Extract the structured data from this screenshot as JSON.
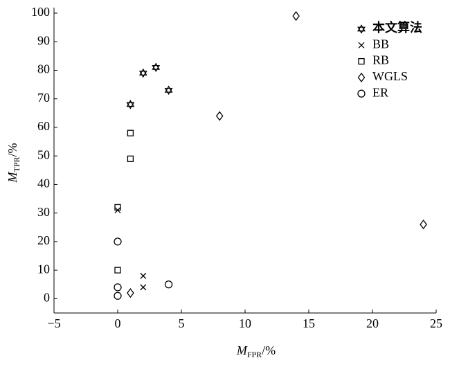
{
  "chart_data": {
    "type": "scatter",
    "xlabel": {
      "main": "M",
      "sub": "FPR",
      "unit": "/%"
    },
    "ylabel": {
      "main": "M",
      "sub": "TPR",
      "unit": "/%"
    },
    "xlim": [
      -5,
      25
    ],
    "ylim": [
      -5,
      100
    ],
    "xticks": [
      {
        "value": -5,
        "label": "−5"
      },
      0,
      5,
      10,
      15,
      20,
      25
    ],
    "yticks": [
      0,
      10,
      20,
      30,
      40,
      50,
      60,
      70,
      80,
      90,
      100
    ],
    "legend": "top-right",
    "series": [
      {
        "name": "本文算法",
        "marker": "hexagram",
        "color": "#000000",
        "x": [
          1,
          2,
          3,
          4
        ],
        "y": [
          68,
          79,
          81,
          73
        ]
      },
      {
        "name": "BB",
        "marker": "x",
        "color": "#000000",
        "x": [
          0,
          2,
          2
        ],
        "y": [
          31,
          8,
          4
        ]
      },
      {
        "name": "RB",
        "marker": "square",
        "color": "#000000",
        "x": [
          0,
          1,
          1,
          0
        ],
        "y": [
          32,
          58,
          49,
          10
        ]
      },
      {
        "name": "WGLS",
        "marker": "diamond",
        "color": "#000000",
        "x": [
          14,
          8,
          24,
          1
        ],
        "y": [
          99,
          64,
          26,
          2
        ]
      },
      {
        "name": "ER",
        "marker": "circle",
        "color": "#000000",
        "x": [
          0,
          0,
          0,
          4
        ],
        "y": [
          20,
          4,
          1,
          5
        ]
      }
    ]
  }
}
